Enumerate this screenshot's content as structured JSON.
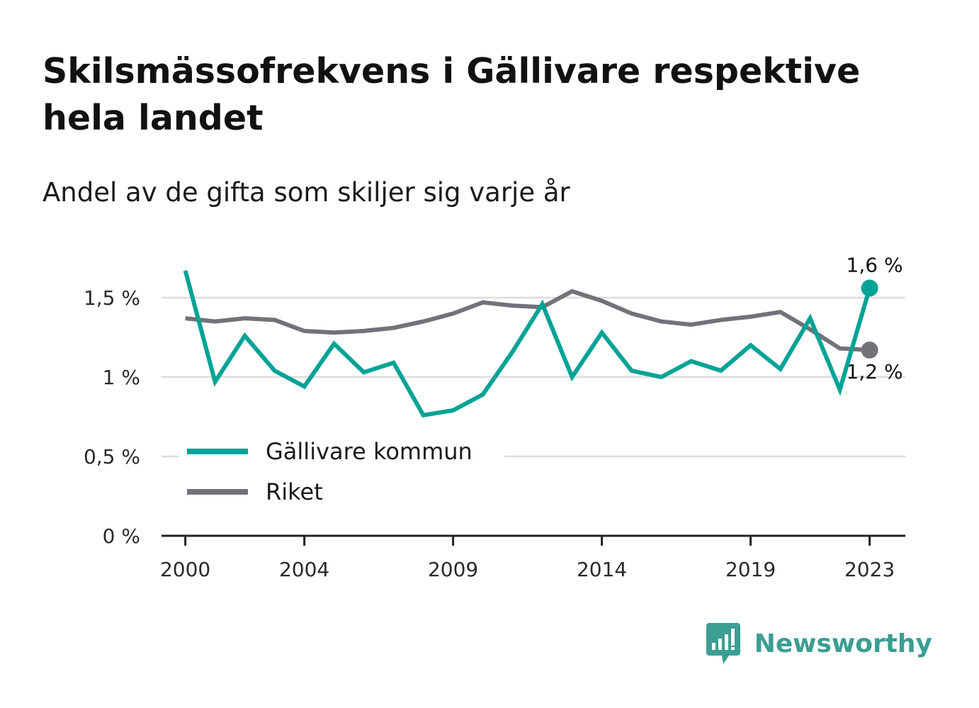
{
  "title": "Skilsmässofrekvens i Gällivare respektive hela landet",
  "subtitle": "Andel av de gifta som skiljer sig varje år",
  "brand": {
    "name": "Newsworthy",
    "color": "#3b9e92",
    "icon": "bar-chart-speech-bubble-icon"
  },
  "chart_data": {
    "type": "line",
    "title": "Skilsmässofrekvens i Gällivare respektive hela landet",
    "subtitle": "Andel av de gifta som skiljer sig varje år",
    "xlabel": "",
    "ylabel": "",
    "x": [
      2000,
      2001,
      2002,
      2003,
      2004,
      2005,
      2006,
      2007,
      2008,
      2009,
      2010,
      2011,
      2012,
      2013,
      2014,
      2015,
      2016,
      2017,
      2018,
      2019,
      2020,
      2021,
      2022,
      2023
    ],
    "xlim": [
      1999.2,
      2024.2
    ],
    "ylim": [
      0,
      1.75
    ],
    "x_ticks": [
      2000,
      2004,
      2009,
      2014,
      2019,
      2023
    ],
    "x_tick_labels": [
      "2000",
      "2004",
      "2009",
      "2014",
      "2019",
      "2023"
    ],
    "y_ticks": [
      0,
      0.5,
      1,
      1.5
    ],
    "y_tick_labels": [
      "0 %",
      "0,5 %",
      "1 %",
      "1,5 %"
    ],
    "grid": true,
    "legend_position": "bottom-left",
    "series": [
      {
        "name": "Gällivare kommun",
        "color": "#00a396",
        "values": [
          1.67,
          0.97,
          1.26,
          1.04,
          0.94,
          1.21,
          1.03,
          1.09,
          0.76,
          0.79,
          0.89,
          1.16,
          1.46,
          1.0,
          1.28,
          1.04,
          1.0,
          1.1,
          1.04,
          1.2,
          1.05,
          1.37,
          0.92,
          1.56
        ],
        "end_label": "1,6 %"
      },
      {
        "name": "Riket",
        "color": "#737278",
        "values": [
          1.37,
          1.35,
          1.37,
          1.36,
          1.29,
          1.28,
          1.29,
          1.31,
          1.35,
          1.4,
          1.47,
          1.45,
          1.44,
          1.54,
          1.48,
          1.4,
          1.35,
          1.33,
          1.36,
          1.38,
          1.41,
          1.3,
          1.18,
          1.17
        ],
        "end_label": "1,2 %"
      }
    ]
  }
}
